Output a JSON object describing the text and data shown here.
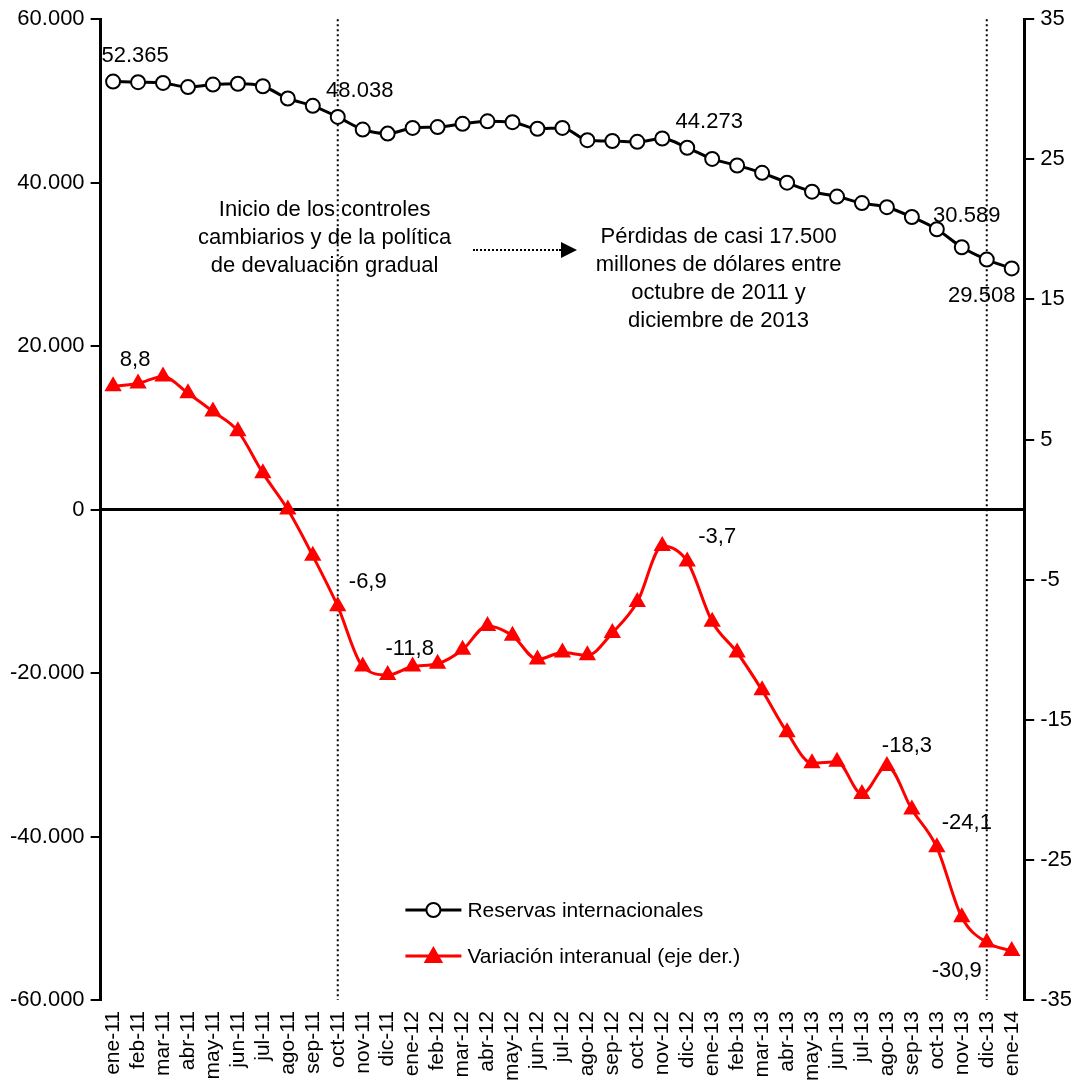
{
  "chart_data": {
    "type": "line",
    "categories": [
      "ene-11",
      "feb-11",
      "mar-11",
      "abr-11",
      "may-11",
      "jun-11",
      "jul-11",
      "ago-11",
      "sep-11",
      "oct-11",
      "nov-11",
      "dic-11",
      "ene-12",
      "feb-12",
      "mar-12",
      "abr-12",
      "may-12",
      "jun-12",
      "jul-12",
      "ago-12",
      "sep-12",
      "oct-12",
      "nov-12",
      "dic-12",
      "ene-13",
      "feb-13",
      "mar-13",
      "abr-13",
      "may-13",
      "jun-13",
      "jul-13",
      "ago-13",
      "sep-13",
      "oct-13",
      "nov-13",
      "dic-13",
      "ene-14"
    ],
    "series": [
      {
        "name": "Reservas internacionales",
        "color": "#000000",
        "marker": "circle",
        "values": [
          52365,
          52300,
          52200,
          51700,
          52000,
          52100,
          51800,
          50300,
          49400,
          48038,
          46500,
          46000,
          46700,
          46800,
          47200,
          47500,
          47400,
          46600,
          46700,
          45200,
          45100,
          45000,
          45400,
          44273,
          42900,
          42100,
          41200,
          40000,
          38900,
          38300,
          37500,
          37000,
          35800,
          34300,
          32100,
          30589,
          29508
        ],
        "value_labels": [
          "52.365",
          null,
          null,
          null,
          null,
          null,
          null,
          null,
          null,
          "48.038",
          null,
          null,
          null,
          null,
          null,
          null,
          null,
          null,
          null,
          null,
          null,
          null,
          null,
          "44.273",
          null,
          null,
          null,
          null,
          null,
          null,
          null,
          null,
          null,
          null,
          null,
          "30.589",
          "29.508"
        ]
      },
      {
        "name": "Variación interanual (eje der.)",
        "color": "#ff0000",
        "marker": "triangle",
        "axis": "y2",
        "values": [
          8.8,
          9.0,
          9.5,
          8.3,
          7.0,
          5.6,
          2.6,
          0.0,
          -3.3,
          -6.9,
          -11.2,
          -11.8,
          -11.2,
          -11.0,
          -10.0,
          -8.3,
          -9.0,
          -10.7,
          -10.2,
          -10.4,
          -8.8,
          -6.6,
          -2.6,
          -3.7,
          -8.0,
          -10.2,
          -12.9,
          -15.9,
          -18.1,
          -18.0,
          -20.3,
          -18.3,
          -21.4,
          -24.1,
          -29.1,
          -30.9,
          -31.5
        ],
        "value_labels": [
          "8,8",
          null,
          null,
          null,
          null,
          null,
          null,
          null,
          null,
          "-6,9",
          null,
          "-11,8",
          null,
          null,
          null,
          null,
          null,
          null,
          null,
          null,
          null,
          null,
          null,
          "-3,7",
          null,
          null,
          null,
          null,
          null,
          null,
          null,
          "-18,3",
          null,
          "-24,1",
          null,
          "-30,9",
          null
        ]
      }
    ],
    "ylim": [
      -60000,
      60000
    ],
    "yticks": [
      {
        "value": -60000,
        "label": "-60.000"
      },
      {
        "value": -40000,
        "label": "-40.000"
      },
      {
        "value": -20000,
        "label": "-20.000"
      },
      0,
      {
        "value": 20000,
        "label": "20.000"
      },
      {
        "value": 40000,
        "label": "40.000"
      },
      {
        "value": 60000,
        "label": "60.000"
      }
    ],
    "y2lim": [
      -35,
      35
    ],
    "y2ticks": [
      -35,
      -25,
      -15,
      -5,
      5,
      15,
      25,
      35
    ],
    "ref_lines": [
      {
        "axis": "x",
        "value": "oct-11",
        "color": "#000000",
        "line_style": "dotted"
      },
      {
        "axis": "x",
        "value": "dic-13",
        "color": "#000000",
        "line_style": "dotted"
      }
    ],
    "annotations": [
      "Inicio de los controles cambiarios y de la política de devaluación gradual",
      "Pérdidas de casi 17.500 millones de dólares entre octubre de 2011 y diciembre de 2013"
    ],
    "legend": "bottom",
    "grid": false
  }
}
